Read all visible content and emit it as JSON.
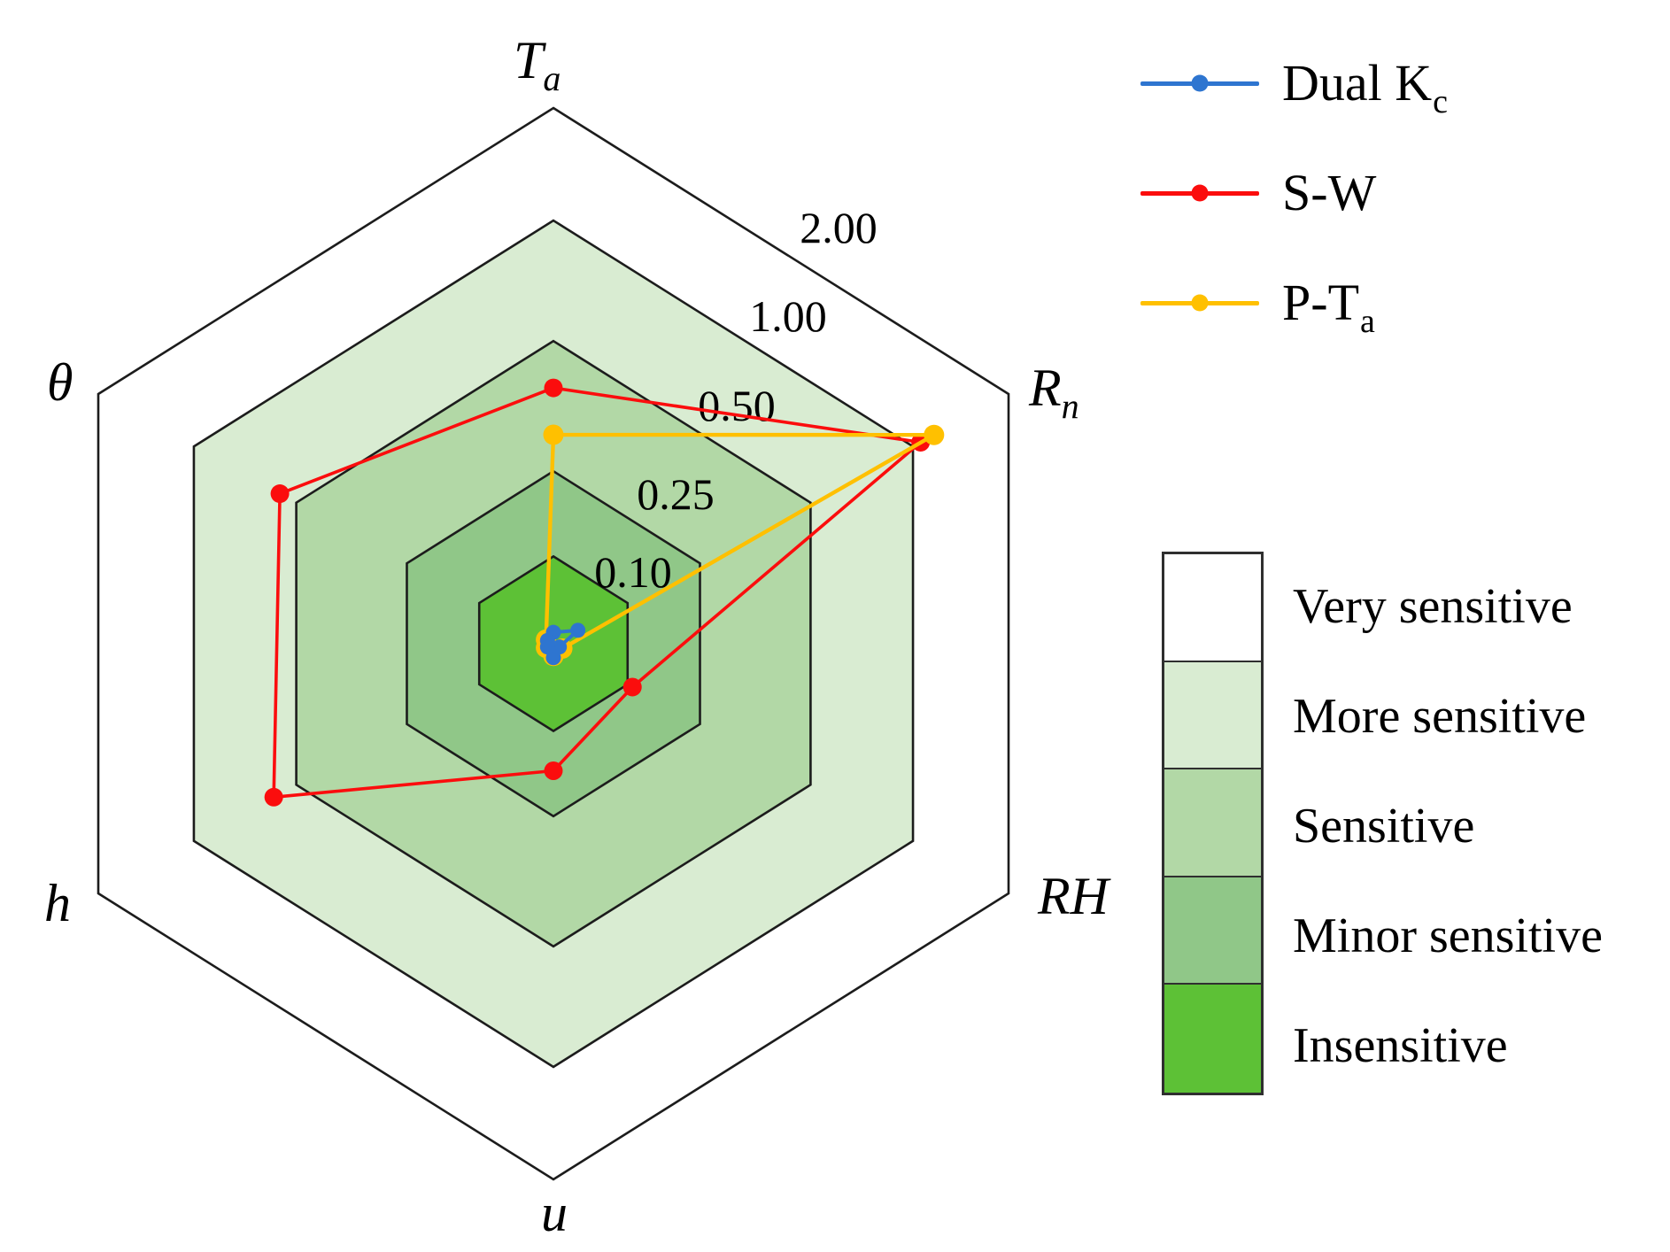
{
  "chart_data": {
    "type": "radar",
    "title": "",
    "grid_shape": "hexagon",
    "radial_scale_note": "nonlinear radial scale with rings at 0.10, 0.25, 0.50, 1.00, 2.00",
    "legend_position": "top-right",
    "axes": [
      {
        "key": "Ta",
        "label": "T",
        "sub": "a",
        "italic": true
      },
      {
        "key": "Rn",
        "label": "R",
        "sub": "n",
        "italic": true
      },
      {
        "key": "RH",
        "label": "RH",
        "sub": "",
        "italic": true
      },
      {
        "key": "u",
        "label": "u",
        "sub": "",
        "italic": true
      },
      {
        "key": "h",
        "label": "h",
        "sub": "",
        "italic": true
      },
      {
        "key": "theta",
        "label": "θ",
        "sub": "",
        "italic": true
      }
    ],
    "levels": [
      {
        "ring_label": "2.00",
        "ring_value": 2.0,
        "band_label": "Very sensitive",
        "color": "#ffffff"
      },
      {
        "ring_label": "1.00",
        "ring_value": 1.0,
        "band_label": "More sensitive",
        "color": "#d9ecd2"
      },
      {
        "ring_label": "0.50",
        "ring_value": 0.5,
        "band_label": "Sensitive",
        "color": "#b2d8a6"
      },
      {
        "ring_label": "0.25",
        "ring_value": 0.25,
        "band_label": "Minor sensitive",
        "color": "#90c788"
      },
      {
        "ring_label": "0.10",
        "ring_value": 0.1,
        "band_label": "Insensitive",
        "color": "#5dc136"
      }
    ],
    "series": [
      {
        "name": "Dual K",
        "name_sub": "c",
        "color": "#2e75d0",
        "values": {
          "Ta": 0.013,
          "Rn": 0.033,
          "RH": 0.008,
          "u": 0.016,
          "h": 0.008,
          "theta": 0.008
        }
      },
      {
        "name": "S-W",
        "name_sub": "",
        "color": "#fb0d0d",
        "values": {
          "Ta": 0.41,
          "Rn": 1.08,
          "RH": 0.11,
          "u": 0.17,
          "h": 0.61,
          "theta": 0.58
        }
      },
      {
        "name": "P-T",
        "name_sub": "a",
        "color": "#ffc000",
        "values": {
          "Ta": 0.32,
          "Rn": 1.22,
          "RH": 0.012,
          "u": 0.014,
          "h": 0.01,
          "theta": 0.01
        }
      }
    ]
  },
  "legend": {
    "items": [
      {
        "label": "Dual K",
        "sub": "c",
        "color": "#2e75d0"
      },
      {
        "label": "S-W",
        "sub": "",
        "color": "#fb0d0d"
      },
      {
        "label": "P-T",
        "sub": "a",
        "color": "#ffc000"
      }
    ]
  },
  "scale_legend": {
    "items": [
      {
        "label": "Very sensitive",
        "color": "#ffffff"
      },
      {
        "label": "More sensitive",
        "color": "#d9ecd2"
      },
      {
        "label": "Sensitive",
        "color": "#b2d8a6"
      },
      {
        "label": "Minor sensitive",
        "color": "#90c788"
      },
      {
        "label": "Insensitive",
        "color": "#5dc136"
      }
    ]
  }
}
